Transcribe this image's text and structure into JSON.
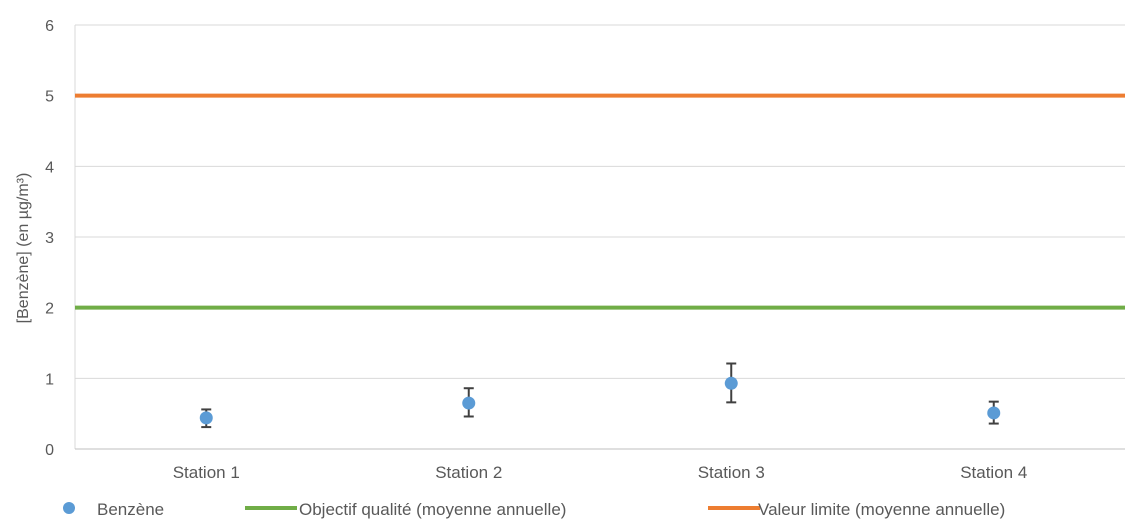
{
  "chart_data": {
    "type": "scatter",
    "title": "",
    "xlabel": "",
    "ylabel": "[Benzène] (en µg/m³)",
    "ylim": [
      0,
      6
    ],
    "yticks": [
      "0",
      "1",
      "2",
      "3",
      "4",
      "5",
      "6"
    ],
    "grid": true,
    "legend_position": "bottom",
    "categories": [
      "Station 1",
      "Station 2",
      "Station 3",
      "Station 4"
    ],
    "series": [
      {
        "name": "Benzène",
        "kind": "points_with_error_bars",
        "color": "#5b9bd5",
        "values": [
          0.44,
          0.65,
          0.93,
          0.51
        ],
        "error_low": [
          0.31,
          0.46,
          0.66,
          0.36
        ],
        "error_high": [
          0.56,
          0.86,
          1.21,
          0.67
        ]
      },
      {
        "name": "Objectif qualité (moyenne annuelle)",
        "kind": "reference_line",
        "color": "#70ad47",
        "value": 2
      },
      {
        "name": "Valeur limite (moyenne annuelle)",
        "kind": "reference_line",
        "color": "#ed7d31",
        "value": 5
      }
    ],
    "colors": {
      "grid": "#d9d9d9",
      "axis_text": "#595959",
      "error_bar": "#404040"
    }
  }
}
